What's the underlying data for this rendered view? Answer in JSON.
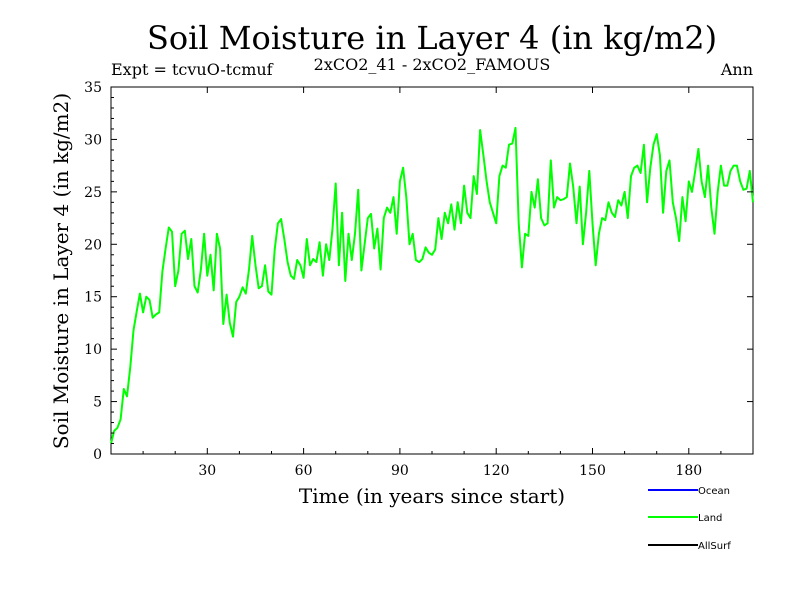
{
  "header": {
    "title": "Soil Moisture in Layer 4 (in kg/m2)",
    "expt": "Expt = tcvuO-tcmuf",
    "subtitle": "2xCO2_41 - 2xCO2_FAMOUS",
    "period": "Ann"
  },
  "colors": {
    "ocean": "#0000ff",
    "land": "#00ff00",
    "allsurf": "#000000",
    "axis": "#000000"
  },
  "chart_data": {
    "type": "line",
    "title": "Soil Moisture in Layer 4 (in kg/m2)",
    "xlabel": "Time (in years since start)",
    "ylabel": "Soil Moisture in Layer 4 (in kg/m2)",
    "xlim": [
      0,
      200
    ],
    "ylim": [
      0,
      35
    ],
    "xticks": [
      30,
      60,
      90,
      120,
      150,
      180
    ],
    "yticks": [
      0,
      5,
      10,
      15,
      20,
      25,
      30,
      35
    ],
    "grid": false,
    "legend": {
      "placement": "bottom-right",
      "entries": [
        "Ocean",
        "Land",
        "AllSurf"
      ]
    },
    "series": [
      {
        "name": "Land",
        "color": "#00ff00",
        "x": [
          0,
          1,
          2,
          3,
          4,
          5,
          6,
          7,
          8,
          9,
          10,
          11,
          12,
          13,
          14,
          15,
          16,
          17,
          18,
          19,
          20,
          21,
          22,
          23,
          24,
          25,
          26,
          27,
          28,
          29,
          30,
          31,
          32,
          33,
          34,
          35,
          36,
          37,
          38,
          39,
          40,
          41,
          42,
          43,
          44,
          45,
          46,
          47,
          48,
          49,
          50,
          51,
          52,
          53,
          54,
          55,
          56,
          57,
          58,
          59,
          60,
          61,
          62,
          63,
          64,
          65,
          66,
          67,
          68,
          69,
          70,
          71,
          72,
          73,
          74,
          75,
          76,
          77,
          78,
          79,
          80,
          81,
          82,
          83,
          84,
          85,
          86,
          87,
          88,
          89,
          90,
          91,
          92,
          93,
          94,
          95,
          96,
          97,
          98,
          99,
          100,
          101,
          102,
          103,
          104,
          105,
          106,
          107,
          108,
          109,
          110,
          111,
          112,
          113,
          114,
          115,
          116,
          117,
          118,
          119,
          120,
          121,
          122,
          123,
          124,
          125,
          126,
          127,
          128,
          129,
          130,
          131,
          132,
          133,
          134,
          135,
          136,
          137,
          138,
          139,
          140,
          141,
          142,
          143,
          144,
          145,
          146,
          147,
          148,
          149,
          150,
          151,
          152,
          153,
          154,
          155,
          156,
          157,
          158,
          159,
          160,
          161,
          162,
          163,
          164,
          165,
          166,
          167,
          168,
          169,
          170,
          171,
          172,
          173,
          174,
          175,
          176,
          177,
          178,
          179,
          180,
          181,
          182,
          183,
          184,
          185,
          186,
          187,
          188,
          189,
          190,
          191,
          192,
          193,
          194,
          195,
          196,
          197,
          198,
          199,
          200
        ],
        "y": [
          1.0,
          2.2,
          2.5,
          3.3,
          6.2,
          5.5,
          8.3,
          11.8,
          13.6,
          15.3,
          13.5,
          15.0,
          14.7,
          13.0,
          13.3,
          13.5,
          17.4,
          19.6,
          21.6,
          21.2,
          16.0,
          17.5,
          21.0,
          21.3,
          18.6,
          20.5,
          16.0,
          15.4,
          17.6,
          21.0,
          17.0,
          19.0,
          15.6,
          21.0,
          19.6,
          12.4,
          15.2,
          12.5,
          11.2,
          14.5,
          15.0,
          15.9,
          15.3,
          17.6,
          20.8,
          18.0,
          15.8,
          16.0,
          18.0,
          15.5,
          15.2,
          19.5,
          22.0,
          22.4,
          20.5,
          18.3,
          17.0,
          16.7,
          18.5,
          18.0,
          16.8,
          20.5,
          18.0,
          18.6,
          18.3,
          20.2,
          17.0,
          20.0,
          18.5,
          21.5,
          25.8,
          18.0,
          23.0,
          16.5,
          21.0,
          18.5,
          21.0,
          25.2,
          17.5,
          20.0,
          22.5,
          22.9,
          19.6,
          21.5,
          17.6,
          22.5,
          23.5,
          23.0,
          24.5,
          21.0,
          26.0,
          27.3,
          24.5,
          20.0,
          21.0,
          18.5,
          18.3,
          18.6,
          19.7,
          19.2,
          19.0,
          19.5,
          22.5,
          20.5,
          23.0,
          22.0,
          23.8,
          21.4,
          24.0,
          22.0,
          25.6,
          23.0,
          22.5,
          26.5,
          24.8,
          30.9,
          28.5,
          26.0,
          24.0,
          23.0,
          22.0,
          26.5,
          27.5,
          27.3,
          29.5,
          29.6,
          31.1,
          22.0,
          17.8,
          21.0,
          20.8,
          25.0,
          23.5,
          26.2,
          22.5,
          21.8,
          22.0,
          28.0,
          23.5,
          24.5,
          24.2,
          24.3,
          24.5,
          27.7,
          25.5,
          22.0,
          25.5,
          20.0,
          23.0,
          27.0,
          22.0,
          18.0,
          21.0,
          22.5,
          22.3,
          24.0,
          23.0,
          22.6,
          24.2,
          23.7,
          25.0,
          22.5,
          26.5,
          27.3,
          27.5,
          26.8,
          29.5,
          24.0,
          27.3,
          29.5,
          30.5,
          28.5,
          23.0,
          27.0,
          28.0,
          24.0,
          22.5,
          20.3,
          24.5,
          22.2,
          26.0,
          25.0,
          27.0,
          29.1,
          26.0,
          24.5,
          27.5,
          23.5,
          21.0,
          25.0,
          27.5,
          25.6,
          25.6,
          27.0,
          27.5,
          27.5,
          26.0,
          25.2,
          25.3,
          27.0,
          24.0
        ]
      }
    ]
  }
}
